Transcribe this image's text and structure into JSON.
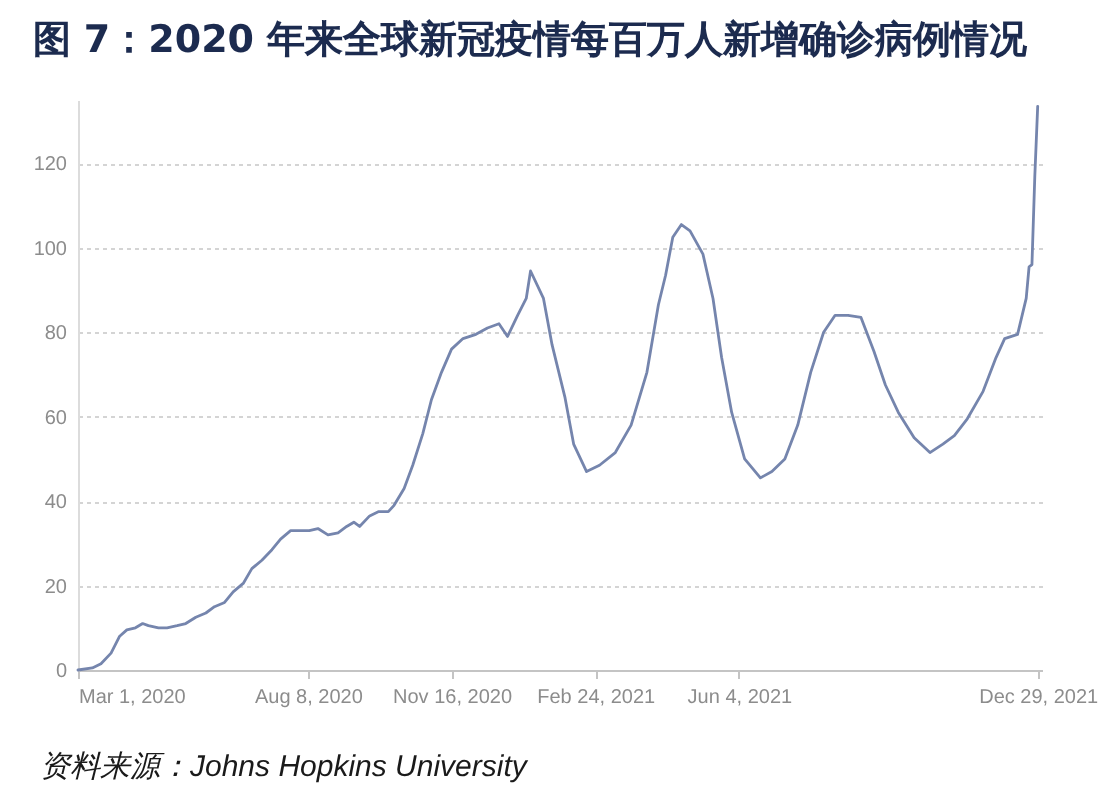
{
  "chart_data": {
    "type": "line",
    "title": "图 7：2020 年来全球新冠疫情每百万人新增确诊病例情况",
    "annotations": [
      "资料来源：Johns Hopkins University"
    ],
    "x": [
      "2020-03-01",
      "2020-03-11",
      "2020-03-17",
      "2020-03-24",
      "2020-03-30",
      "2020-04-04",
      "2020-04-10",
      "2020-04-15",
      "2020-04-19",
      "2020-04-26",
      "2020-05-02",
      "2020-05-09",
      "2020-05-15",
      "2020-05-22",
      "2020-05-29",
      "2020-06-04",
      "2020-06-11",
      "2020-06-17",
      "2020-06-24",
      "2020-06-30",
      "2020-07-07",
      "2020-07-14",
      "2020-07-20",
      "2020-07-27",
      "2020-08-02",
      "2020-08-09",
      "2020-08-15",
      "2020-08-22",
      "2020-08-29",
      "2020-09-04",
      "2020-09-09",
      "2020-09-13",
      "2020-09-20",
      "2020-09-26",
      "2020-10-03",
      "2020-10-07",
      "2020-10-14",
      "2020-10-20",
      "2020-10-27",
      "2020-11-02",
      "2020-11-09",
      "2020-11-16",
      "2020-11-24",
      "2020-12-03",
      "2020-12-11",
      "2020-12-19",
      "2020-12-25",
      "2021-01-01",
      "2021-01-07",
      "2021-01-10",
      "2021-01-19",
      "2021-01-25",
      "2021-02-03",
      "2021-02-09",
      "2021-02-18",
      "2021-02-27",
      "2021-03-10",
      "2021-03-21",
      "2021-04-01",
      "2021-04-09",
      "2021-04-14",
      "2021-04-19",
      "2021-04-25",
      "2021-05-01",
      "2021-05-10",
      "2021-05-17",
      "2021-05-23",
      "2021-05-30",
      "2021-06-08",
      "2021-06-19",
      "2021-06-27",
      "2021-07-06",
      "2021-07-15",
      "2021-07-24",
      "2021-08-02",
      "2021-08-10",
      "2021-08-19",
      "2021-08-28",
      "2021-09-06",
      "2021-09-14",
      "2021-09-23",
      "2021-10-04",
      "2021-10-15",
      "2021-10-24",
      "2021-11-01",
      "2021-11-10",
      "2021-11-21",
      "2021-11-30",
      "2021-12-06",
      "2021-12-15",
      "2021-12-21",
      "2021-12-23",
      "2021-12-25",
      "2021-12-27",
      "2021-12-29"
    ],
    "series": [
      {
        "color": "#7585ad",
        "values": [
          0,
          0.5,
          1.5,
          4,
          8,
          9.5,
          10,
          11,
          10.5,
          10,
          10,
          10.5,
          11,
          12.5,
          13.5,
          15,
          16,
          18.5,
          20.5,
          24,
          26,
          28.5,
          31,
          33,
          33,
          33,
          33.5,
          32,
          32.5,
          34,
          35,
          34,
          36.5,
          37.5,
          37.5,
          39,
          43,
          48.5,
          56,
          64,
          70.5,
          76,
          78.5,
          79.5,
          81,
          82,
          79,
          84,
          88,
          94.5,
          88,
          77,
          64.5,
          53.5,
          47,
          48.5,
          51.5,
          58,
          70.5,
          86.5,
          93.5,
          102.5,
          105.5,
          104,
          98.5,
          88,
          74,
          61,
          50,
          45.5,
          47,
          50,
          58,
          70.5,
          80,
          84,
          84,
          83.5,
          75.5,
          67.5,
          61,
          55,
          51.5,
          53.5,
          55.5,
          59.5,
          66,
          74,
          78.5,
          79.5,
          88,
          95.5,
          96,
          117,
          133.5
        ]
      }
    ],
    "xlim": [
      "2020-03-01",
      "2022-01-01"
    ],
    "xticks": [
      {
        "value": "2020-03-01",
        "label": "Mar 1, 2020"
      },
      {
        "value": "2020-08-08",
        "label": "Aug 8, 2020"
      },
      {
        "value": "2020-11-16",
        "label": "Nov 16, 2020"
      },
      {
        "value": "2021-02-24",
        "label": "Feb 24, 2021"
      },
      {
        "value": "2021-06-04",
        "label": "Jun 4, 2021"
      },
      {
        "value": "2021-12-29",
        "label": "Dec 29, 2021"
      }
    ],
    "ylim": [
      0,
      135
    ],
    "yticks": [
      0,
      20,
      40,
      60,
      80,
      100,
      120
    ],
    "grid": "y"
  }
}
